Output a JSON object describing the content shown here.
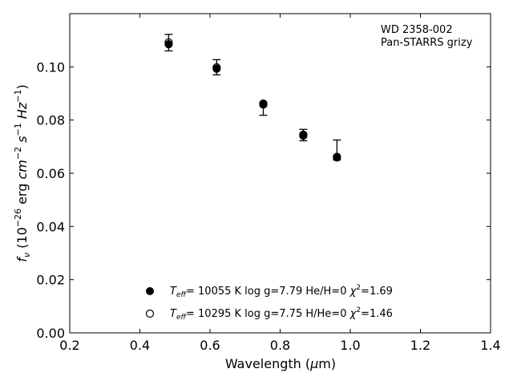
{
  "chart_data": {
    "type": "scatter",
    "annotation": [
      "WD 2358-002",
      "Pan-STARRS grizy"
    ],
    "xlabel": "Wavelength (μm)",
    "ylabel": "f_ν (10^-26 erg cm^-2 s^-1 Hz^-1)",
    "xlim": [
      0.2,
      1.4
    ],
    "ylim": [
      0.0,
      0.12
    ],
    "xticks": [
      0.2,
      0.4,
      0.6,
      0.8,
      1.0,
      1.2,
      1.4
    ],
    "yticks": [
      0.0,
      0.02,
      0.04,
      0.06,
      0.08,
      0.1
    ],
    "xtick_labels": [
      "0.2",
      "0.4",
      "0.6",
      "0.8",
      "1.0",
      "1.2",
      "1.4"
    ],
    "ytick_labels": [
      "0.00",
      "0.02",
      "0.04",
      "0.06",
      "0.08",
      "0.10"
    ],
    "grid": false,
    "observed": {
      "x": [
        0.482,
        0.619,
        0.752,
        0.866,
        0.962
      ],
      "y": [
        0.1085,
        0.0998,
        0.0843,
        0.0743,
        0.067
      ],
      "yerr_low": [
        0.106,
        0.097,
        0.0818,
        0.0722,
        0.065
      ],
      "yerr_high": [
        0.1122,
        0.1027,
        0.0866,
        0.0765,
        0.0725
      ]
    },
    "series": [
      {
        "label": "T_eff= 10055 K  log g=7.79  He/H=0  χ²=1.69",
        "marker": "filled",
        "x": [
          0.482,
          0.619,
          0.752,
          0.866,
          0.962
        ],
        "y": [
          0.1085,
          0.0993,
          0.0862,
          0.0745,
          0.0662
        ]
      },
      {
        "label": "T_eff= 10295 K  log g=7.75  H/He=0  χ²=1.46",
        "marker": "open",
        "x": [
          0.482,
          0.619,
          0.752,
          0.866,
          0.962
        ],
        "y": [
          0.1092,
          0.0998,
          0.0858,
          0.0741,
          0.0659
        ]
      }
    ],
    "legend": {
      "location": "lower-center",
      "entries": [
        {
          "marker": "filled",
          "teff": "10055",
          "logg": "7.79",
          "comp": "He/H=0",
          "chi2": "1.69"
        },
        {
          "marker": "open",
          "teff": "10295",
          "logg": "7.75",
          "comp": "H/He=0",
          "chi2": "1.46"
        }
      ]
    }
  }
}
